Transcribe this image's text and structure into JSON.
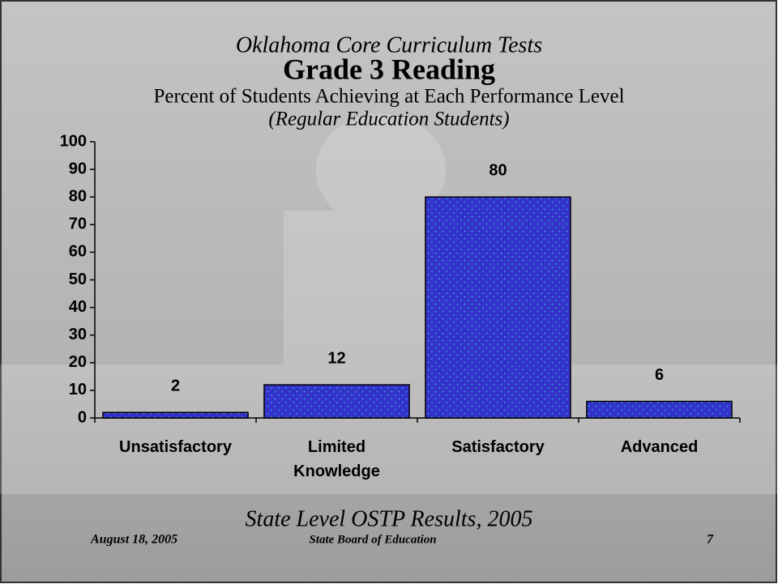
{
  "chart_data": {
    "type": "bar",
    "title": "Oklahoma Core Curriculum Tests",
    "subtitle": "Grade 3 Reading",
    "description": "Percent of Students Achieving at Each Performance Level",
    "note": "(Regular Education Students)",
    "categories": [
      "Unsatisfactory",
      "Limited Knowledge",
      "Satisfactory",
      "Advanced"
    ],
    "values": [
      2,
      12,
      80,
      6
    ],
    "color": "#3333cc",
    "ylim": [
      0,
      100
    ],
    "yticks": [
      0,
      10,
      20,
      30,
      40,
      50,
      60,
      70,
      80,
      90,
      100
    ],
    "grid": false
  },
  "footer": {
    "caption": "State Level OSTP Results, 2005",
    "date": "August 18, 2005",
    "organization": "State Board of Education",
    "page": "7"
  }
}
